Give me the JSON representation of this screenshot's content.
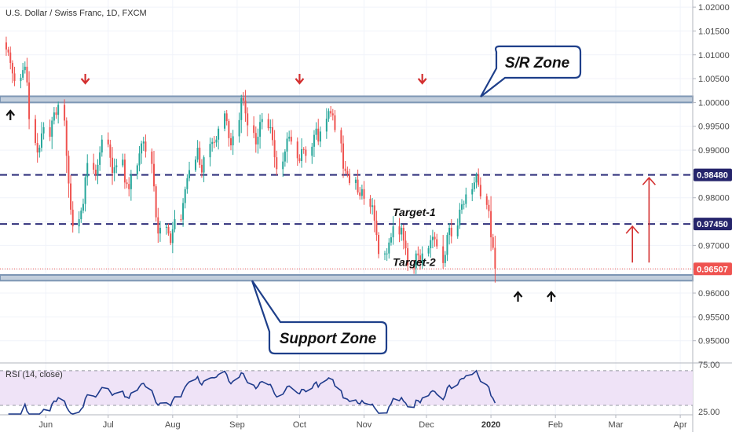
{
  "header": {
    "symbol_title": "U.S. Dollar / Swiss Franc, 1D, FXCM"
  },
  "colors": {
    "up": "#26a69a",
    "down": "#ef5350",
    "zone_fill": "#b7c5d6",
    "zone_stroke": "#7d96b4",
    "dashed_level": "#2f2f7a",
    "current_price": "#ef5350",
    "callout_stroke": "#1e3f8a",
    "arrow_red": "#d32f2f",
    "arrow_black": "#111111",
    "rsi_line": "#1f3b8c",
    "rsi_band": "#efe3f7",
    "tag_dark": "#25246b"
  },
  "annotations": {
    "sr_zone_label": "S/R Zone",
    "support_zone_label": "Support Zone",
    "target1_label": "Target-1",
    "target2_label": "Target-2"
  },
  "rsi": {
    "title": "RSI (14, close)",
    "ticks": [
      "75.00",
      "25.00"
    ],
    "upper": 70,
    "lower": 30
  },
  "chart_data": {
    "type": "candlestick",
    "y_ticks": [
      "1.02000",
      "1.01500",
      "1.01000",
      "1.00500",
      "1.00000",
      "0.99500",
      "0.99000",
      "0.98500",
      "0.98000",
      "0.97500",
      "0.97000",
      "0.96500",
      "0.96000",
      "0.95500",
      "0.95000"
    ],
    "y_tick_values": [
      1.02,
      1.015,
      1.01,
      1.005,
      1.0,
      0.995,
      0.99,
      0.985,
      0.98,
      0.975,
      0.97,
      0.965,
      0.96,
      0.955,
      0.95
    ],
    "ylim": [
      0.9455,
      1.0215
    ],
    "x_ticks": [
      "Jun",
      "Jul",
      "Aug",
      "Sep",
      "Oct",
      "Nov",
      "Dec",
      "2020",
      "Feb",
      "Mar",
      "Apr"
    ],
    "x_tick_dates": [
      "2019-06-01",
      "2019-07-01",
      "2019-08-01",
      "2019-09-01",
      "2019-10-01",
      "2019-11-01",
      "2019-12-01",
      "2020-01-01",
      "2020-02-01",
      "2020-03-01",
      "2020-04-01"
    ],
    "xlim": [
      "2019-05-10",
      "2020-04-07"
    ],
    "levels": [
      {
        "name": "S/R Zone",
        "type": "zone",
        "low": 1.0,
        "high": 1.0013
      },
      {
        "name": "Support Zone",
        "type": "zone",
        "low": 0.9626,
        "high": 0.9638
      },
      {
        "type": "dashed",
        "price": 0.9848,
        "label": "0.98480"
      },
      {
        "type": "dashed",
        "price": 0.9745,
        "label": "0.97450"
      },
      {
        "type": "current",
        "price": 0.96507,
        "label": "0.96507"
      }
    ],
    "series": [
      {
        "name": "",
        "close": [
          1.0111,
          1.0105,
          1.0083,
          1.0061,
          1.0045,
          1.0052,
          1.0068,
          1.0075,
          1.0042,
          0.9965,
          0.9915,
          0.9895,
          0.9905,
          0.9935,
          0.9948,
          0.9928,
          0.9962,
          0.9979,
          0.9974,
          0.9995,
          0.9962,
          0.9888,
          0.983,
          0.9775,
          0.974,
          0.9755,
          0.9773,
          0.9787,
          0.9843,
          0.9873,
          0.9859,
          0.9848,
          0.9869,
          0.9895,
          0.9922,
          0.9912,
          0.9884,
          0.9852,
          0.9864,
          0.9868,
          0.988,
          0.9832,
          0.9829,
          0.9818,
          0.9849,
          0.9868,
          0.9893,
          0.9914,
          0.9918,
          0.9897,
          0.9871,
          0.9824,
          0.9759,
          0.9725,
          0.9737,
          0.9739,
          0.9725,
          0.9705,
          0.9734,
          0.9755,
          0.9754,
          0.9789,
          0.9818,
          0.9841,
          0.9858,
          0.988,
          0.9905,
          0.9869,
          0.9853,
          0.9885,
          0.9913,
          0.9917,
          0.9916,
          0.9922,
          0.9945,
          0.9977,
          0.9961,
          0.9925,
          0.991,
          0.9929,
          0.9963,
          1.0009,
          1.0004,
          0.9977,
          0.9952,
          0.9936,
          0.9912,
          0.9928,
          0.9959,
          0.9965,
          0.9946,
          0.9948,
          0.9921,
          0.9885,
          0.986,
          0.9876,
          0.9897,
          0.9924,
          0.9928,
          0.9918,
          0.9883,
          0.9877,
          0.9902,
          0.9901,
          0.9888,
          0.9907,
          0.9932,
          0.9945,
          0.9918,
          0.9939,
          0.9966,
          0.9982,
          0.9977,
          0.9973,
          0.9942,
          0.9914,
          0.9861,
          0.9856,
          0.985,
          0.9831,
          0.9838,
          0.9811,
          0.9804,
          0.9818,
          0.9798,
          0.9781,
          0.9784,
          0.9752,
          0.9722,
          0.9682,
          0.9683,
          0.9683,
          0.9706,
          0.9717,
          0.974,
          0.9723,
          0.9737,
          0.971,
          0.9694,
          0.9658,
          0.9652,
          0.9683,
          0.9679,
          0.9662,
          0.9683,
          0.9694,
          0.9711,
          0.9718,
          0.9713,
          0.9698,
          0.9663,
          0.968,
          0.9722,
          0.9737,
          0.9719,
          0.9742,
          0.9775,
          0.9786,
          0.9787,
          0.9807,
          0.9818,
          0.9832,
          0.9849,
          0.9827,
          0.9803,
          0.9785,
          0.9772,
          0.9717,
          0.9695,
          0.9651
        ]
      }
    ]
  }
}
